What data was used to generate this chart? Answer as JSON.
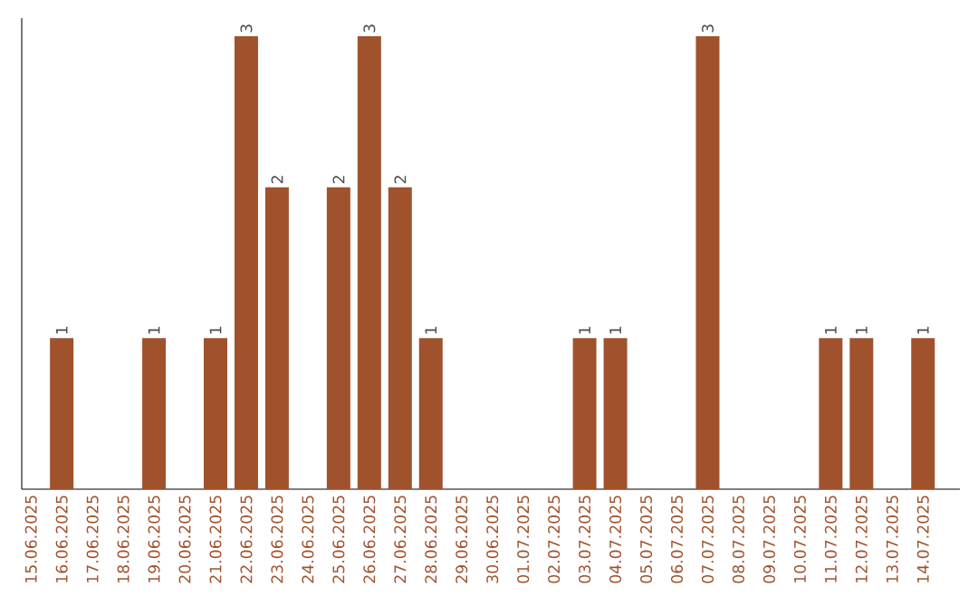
{
  "chart_data": {
    "type": "bar",
    "categories": [
      "15.06.2025",
      "16.06.2025",
      "17.06.2025",
      "18.06.2025",
      "19.06.2025",
      "20.06.2025",
      "21.06.2025",
      "22.06.2025",
      "23.06.2025",
      "24.06.2025",
      "25.06.2025",
      "26.06.2025",
      "27.06.2025",
      "28.06.2025",
      "29.06.2025",
      "30.06.2025",
      "01.07.2025",
      "02.07.2025",
      "03.07.2025",
      "04.07.2025",
      "05.07.2025",
      "06.07.2025",
      "07.07.2025",
      "08.07.2025",
      "09.07.2025",
      "10.07.2025",
      "11.07.2025",
      "12.07.2025",
      "13.07.2025",
      "14.07.2025"
    ],
    "values": [
      0,
      1,
      0,
      0,
      1,
      0,
      1,
      3,
      2,
      0,
      2,
      3,
      2,
      1,
      0,
      0,
      0,
      0,
      1,
      1,
      0,
      0,
      3,
      0,
      0,
      0,
      1,
      1,
      0,
      1
    ],
    "value_labels": [
      null,
      "1",
      null,
      null,
      "1",
      null,
      "1",
      "3",
      "2",
      null,
      "2",
      "3",
      "2",
      "1",
      null,
      null,
      null,
      null,
      "1",
      "1",
      null,
      null,
      "3",
      null,
      null,
      null,
      "1",
      "1",
      null,
      "1"
    ],
    "color": "#a0522d"
  }
}
